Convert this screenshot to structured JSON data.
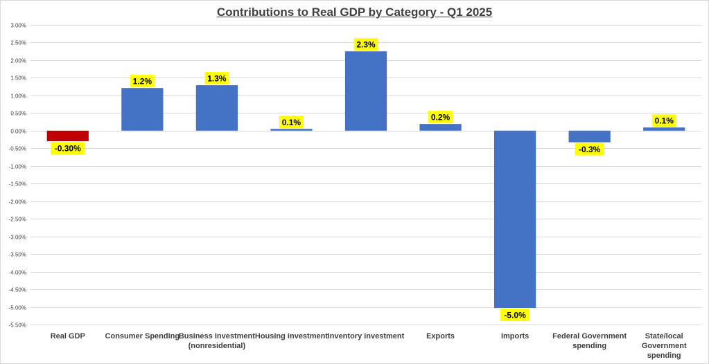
{
  "colors": {
    "positive": "#4472c4",
    "negative_highlight": "#c00000",
    "label_bg": "#ffff00",
    "grid": "#d9d9d9",
    "text": "#404040"
  },
  "chart_data": {
    "type": "bar",
    "title": "Contributions to Real GDP by Category - Q1 2025",
    "xlabel": "",
    "ylabel": "",
    "ylim": [
      -5.5,
      3.0
    ],
    "y_step": 0.5,
    "grid": true,
    "y_tick_labels": [
      "3.00%",
      "2.50%",
      "2.00%",
      "1.50%",
      "1.00%",
      "0.50%",
      "0.00%",
      "-0.50%",
      "-1.00%",
      "-1.50%",
      "-2.00%",
      "-2.50%",
      "-3.00%",
      "-3.50%",
      "-4.00%",
      "-4.50%",
      "-5.00%",
      "-5.50%"
    ],
    "categories": [
      [
        "Real GDP"
      ],
      [
        "Consumer Spending"
      ],
      [
        "Business Investment",
        "(nonresidential)"
      ],
      [
        "Housing investment"
      ],
      [
        "Inventory investment"
      ],
      [
        "Exports"
      ],
      [
        "Imports"
      ],
      [
        "Federal Government",
        "spending"
      ],
      [
        "State/local",
        "Government",
        "spending"
      ]
    ],
    "values": [
      -0.3,
      1.21,
      1.29,
      0.05,
      2.25,
      0.19,
      -5.03,
      -0.33,
      0.09
    ],
    "data_labels": [
      "-0.30%",
      "1.2%",
      "1.3%",
      "0.1%",
      "2.3%",
      "0.2%",
      "-5.0%",
      "-0.3%",
      "0.1%"
    ],
    "highlight_index": 0
  }
}
